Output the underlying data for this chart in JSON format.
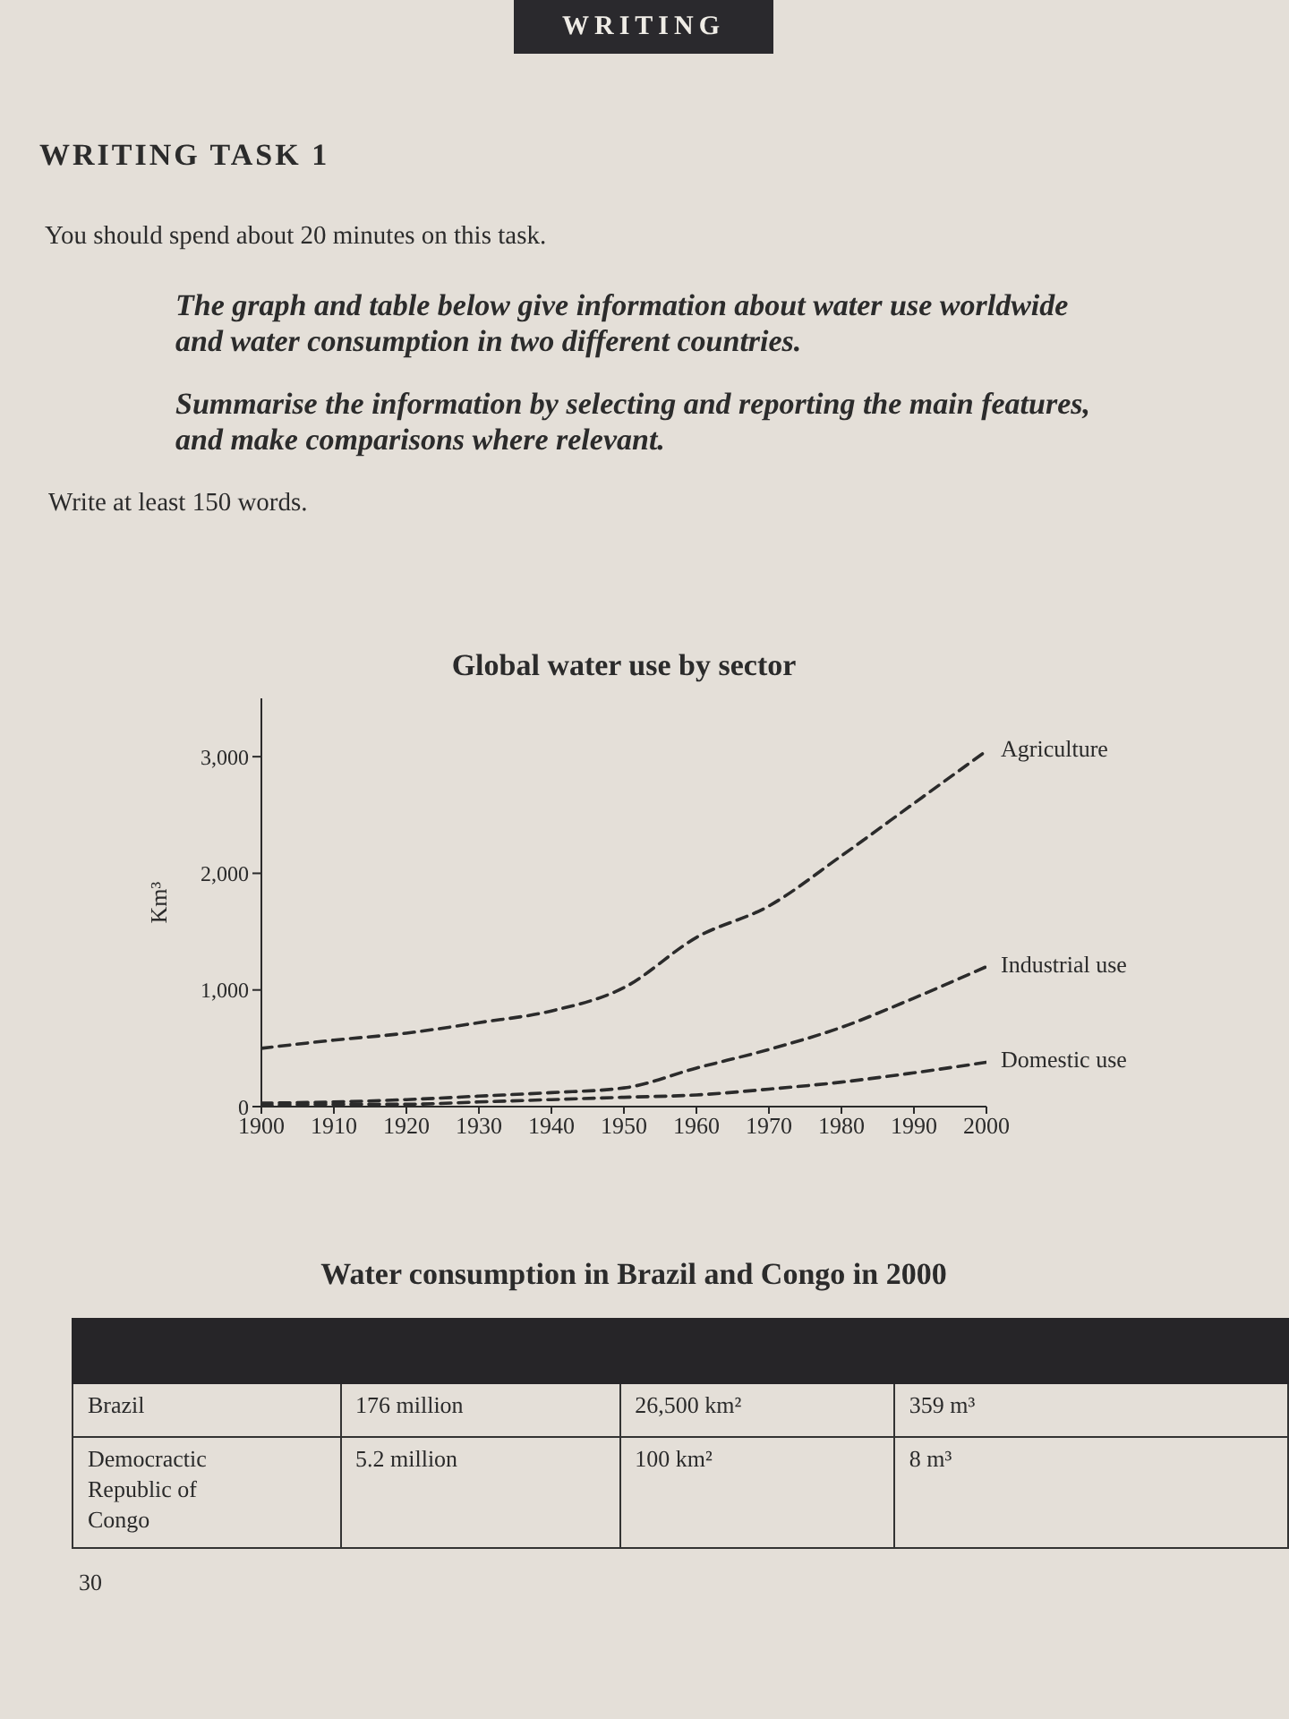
{
  "chart_data": [
    {
      "type": "line",
      "title": "Global water use by sector",
      "ylabel": "Km³",
      "annotations": [
        "WRITING",
        "WRITING TASK 1",
        "You should spend about 20 minutes on this task.",
        "The graph and table below give information about water use worldwide and water consumption in two different countries.",
        "Summarise the information by selecting and reporting the main features, and make comparisons where relevant.",
        "Write at least 150 words."
      ],
      "x": [
        1900,
        1910,
        1920,
        1930,
        1940,
        1950,
        1960,
        1970,
        1980,
        1990,
        2000
      ],
      "series": [
        {
          "name": "Agriculture",
          "color": "#2b2b2b",
          "values": [
            500,
            570,
            630,
            720,
            820,
            1020,
            1450,
            1720,
            2150,
            2600,
            3050
          ]
        },
        {
          "name": "Industrial use",
          "color": "#2b2b2b",
          "values": [
            30,
            40,
            60,
            90,
            120,
            160,
            330,
            490,
            680,
            930,
            1200
          ]
        },
        {
          "name": "Domestic use",
          "color": "#2b2b2b",
          "values": [
            10,
            20,
            20,
            40,
            60,
            80,
            100,
            150,
            210,
            290,
            380
          ]
        }
      ],
      "xlim": [
        1900,
        2000
      ],
      "xticks": [
        1900,
        1910,
        1920,
        1930,
        1940,
        1950,
        1960,
        1970,
        1980,
        1990,
        2000
      ],
      "ylim": [
        0,
        3500
      ],
      "yticks": [
        0,
        {
          "value": 1000,
          "label": "1,000"
        },
        {
          "value": 2000,
          "label": "2,000"
        },
        {
          "value": 3000,
          "label": "3,000"
        }
      ],
      "grid": false,
      "legend": false,
      "marker": "none",
      "line_style": "dashed"
    },
    {
      "type": "other",
      "title": "Water consumption in Brazil and Congo in 2000",
      "annotations": [
        "Brazil",
        "176 million",
        "26,500 km²",
        "359 m³",
        "Democractic Republic of Congo",
        "5.2 million",
        "100 km²",
        "8 m³",
        "30"
      ]
    }
  ]
}
